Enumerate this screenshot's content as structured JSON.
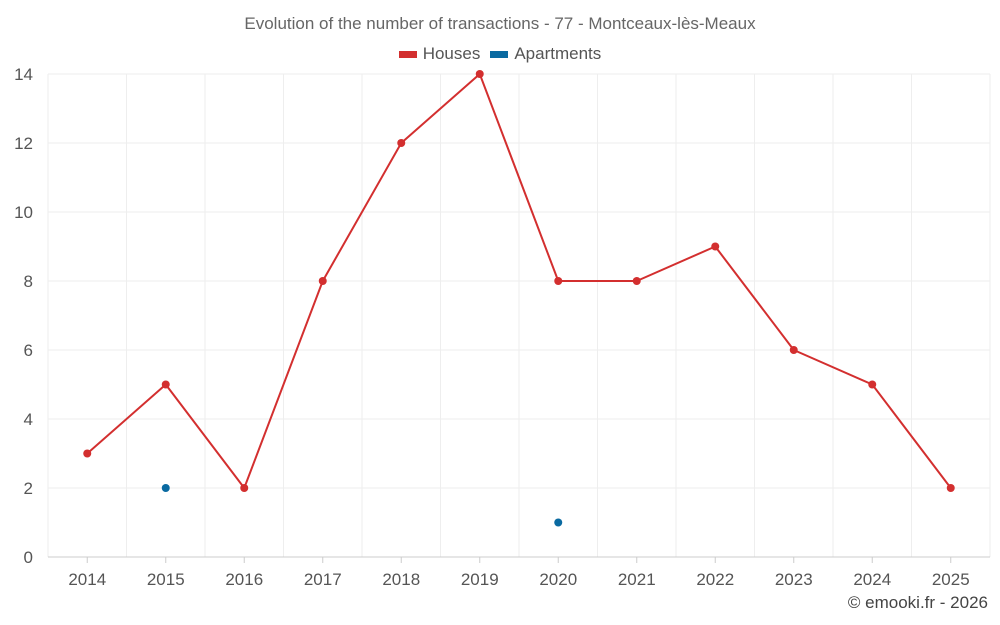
{
  "colors": {
    "houses": "#d32f2f",
    "apartments": "#0a6aa1",
    "grid": "#eeeeee",
    "axis_text": "#555555"
  },
  "credit": "© emooki.fr - 2026",
  "chart_data": {
    "type": "line",
    "title": "Evolution of the number of transactions - 77 - Montceaux-lès-Meaux",
    "xlabel": "",
    "ylabel": "",
    "categories": [
      "2014",
      "2015",
      "2016",
      "2017",
      "2018",
      "2019",
      "2020",
      "2021",
      "2022",
      "2023",
      "2024",
      "2025"
    ],
    "ylim": [
      0,
      14
    ],
    "yticks": [
      "0",
      "2",
      "4",
      "6",
      "8",
      "10",
      "12",
      "14"
    ],
    "grid": true,
    "legend_position": "top-center",
    "series": [
      {
        "name": "Houses",
        "color_key": "houses",
        "values": [
          3,
          5,
          2,
          8,
          12,
          14,
          8,
          8,
          9,
          6,
          5,
          2
        ]
      },
      {
        "name": "Apartments",
        "color_key": "apartments",
        "values": [
          null,
          2,
          null,
          null,
          null,
          null,
          1,
          null,
          null,
          null,
          null,
          null
        ]
      }
    ]
  }
}
